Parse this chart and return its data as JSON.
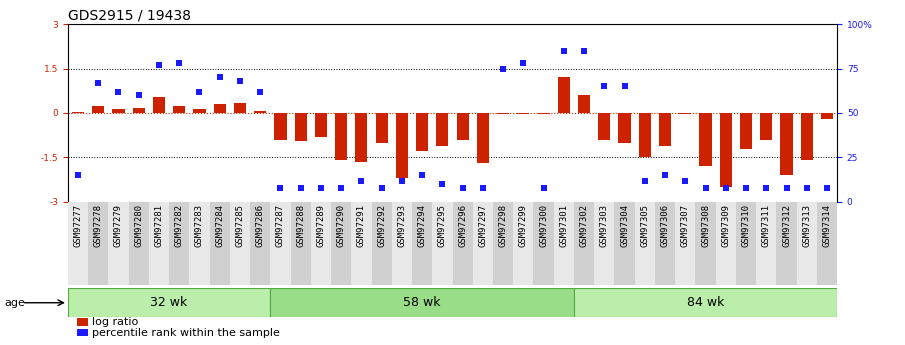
{
  "title": "GDS2915 / 19438",
  "samples": [
    "GSM97277",
    "GSM97278",
    "GSM97279",
    "GSM97280",
    "GSM97281",
    "GSM97282",
    "GSM97283",
    "GSM97284",
    "GSM97285",
    "GSM97286",
    "GSM97287",
    "GSM97288",
    "GSM97289",
    "GSM97290",
    "GSM97291",
    "GSM97292",
    "GSM97293",
    "GSM97294",
    "GSM97295",
    "GSM97296",
    "GSM97297",
    "GSM97298",
    "GSM97299",
    "GSM97300",
    "GSM97301",
    "GSM97302",
    "GSM97303",
    "GSM97304",
    "GSM97305",
    "GSM97306",
    "GSM97307",
    "GSM97308",
    "GSM97309",
    "GSM97310",
    "GSM97311",
    "GSM97312",
    "GSM97313",
    "GSM97314"
  ],
  "log_ratio": [
    0.05,
    0.22,
    0.12,
    0.18,
    0.55,
    0.22,
    0.12,
    0.3,
    0.35,
    0.08,
    -0.9,
    -0.95,
    -0.8,
    -1.6,
    -1.65,
    -1.0,
    -2.2,
    -1.3,
    -1.1,
    -0.9,
    -1.7,
    -0.05,
    -0.05,
    -0.05,
    1.2,
    0.6,
    -0.9,
    -1.0,
    -1.5,
    -1.1,
    -0.05,
    -1.8,
    -2.5,
    -1.2,
    -0.9,
    -2.1,
    -1.6,
    -0.2
  ],
  "percentile": [
    15,
    67,
    62,
    60,
    77,
    78,
    62,
    70,
    68,
    62,
    8,
    8,
    8,
    8,
    12,
    8,
    12,
    15,
    10,
    8,
    8,
    75,
    78,
    8,
    85,
    85,
    65,
    65,
    12,
    15,
    12,
    8,
    8,
    8,
    8,
    8,
    8,
    8
  ],
  "groups": [
    {
      "label": "32 wk",
      "start": 0,
      "end": 9
    },
    {
      "label": "58 wk",
      "start": 10,
      "end": 24
    },
    {
      "label": "84 wk",
      "start": 25,
      "end": 37
    }
  ],
  "ylim": [
    -3,
    3
  ],
  "yticks": [
    -3,
    -1.5,
    0,
    1.5,
    3
  ],
  "ytick_labels": [
    "-3",
    "-1.5",
    "0",
    "1.5",
    "3"
  ],
  "right_yticks": [
    0,
    25,
    50,
    75,
    100
  ],
  "right_ytick_labels": [
    "0",
    "25",
    "50",
    "75",
    "100%"
  ],
  "hlines_dotted": [
    -1.5,
    1.5
  ],
  "hline_red": 0,
  "bar_color": "#cc2200",
  "dot_color": "#1a1aff",
  "group_color_light": "#bbeeaa",
  "group_color_mid": "#99dd88",
  "group_border_color": "#55aa44",
  "bg_color": "#ffffff",
  "tick_bg_light": "#e8e8e8",
  "tick_bg_dark": "#d0d0d0",
  "title_fontsize": 10,
  "tick_fontsize": 6.5,
  "legend_fontsize": 8,
  "group_label_fontsize": 9
}
